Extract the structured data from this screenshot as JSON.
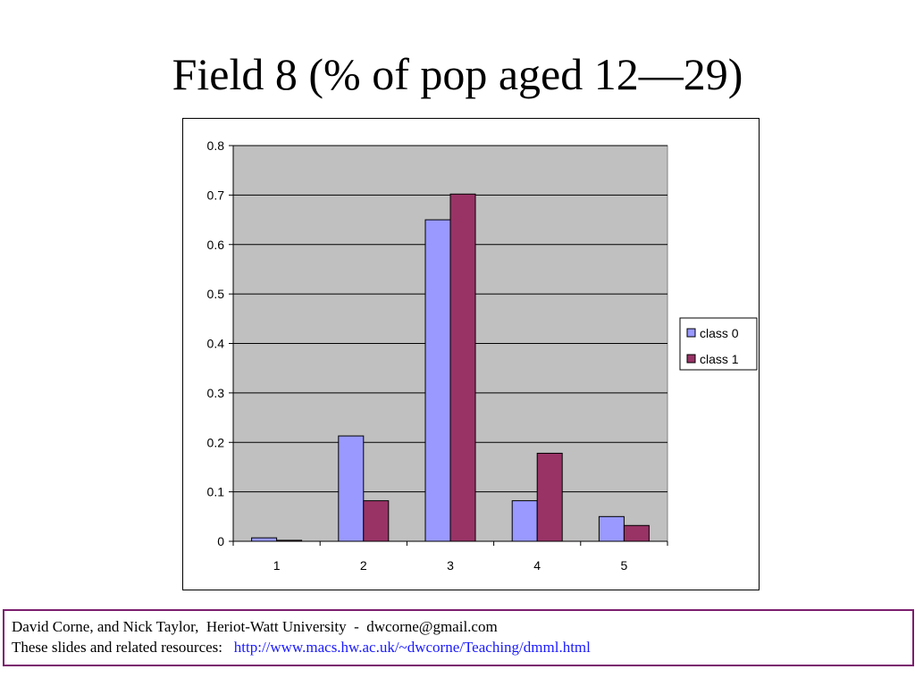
{
  "slide": {
    "title": "Field 8 (% of pop aged 12—29)"
  },
  "footer": {
    "line1": "David Corne, and Nick Taylor,  Heriot-Watt University  -  dwcorne@gmail.com",
    "line2_prefix": "These slides and related resources:   ",
    "line2_link": "http://www.macs.hw.ac.uk/~dwcorne/Teaching/dmml.html"
  },
  "chart_data": {
    "type": "bar",
    "categories": [
      "1",
      "2",
      "3",
      "4",
      "5"
    ],
    "series": [
      {
        "name": "class 0",
        "values": [
          0.007,
          0.213,
          0.65,
          0.082,
          0.05
        ],
        "color": "#9999ff"
      },
      {
        "name": "class 1",
        "values": [
          0.002,
          0.082,
          0.702,
          0.178,
          0.032
        ],
        "color": "#993366"
      }
    ],
    "yticks": [
      "0",
      "0.1",
      "0.2",
      "0.3",
      "0.4",
      "0.5",
      "0.6",
      "0.7",
      "0.8"
    ],
    "ylim": [
      0,
      0.8
    ],
    "grid": true,
    "plot_background": "#c0c0c0",
    "legend_position": "right"
  }
}
